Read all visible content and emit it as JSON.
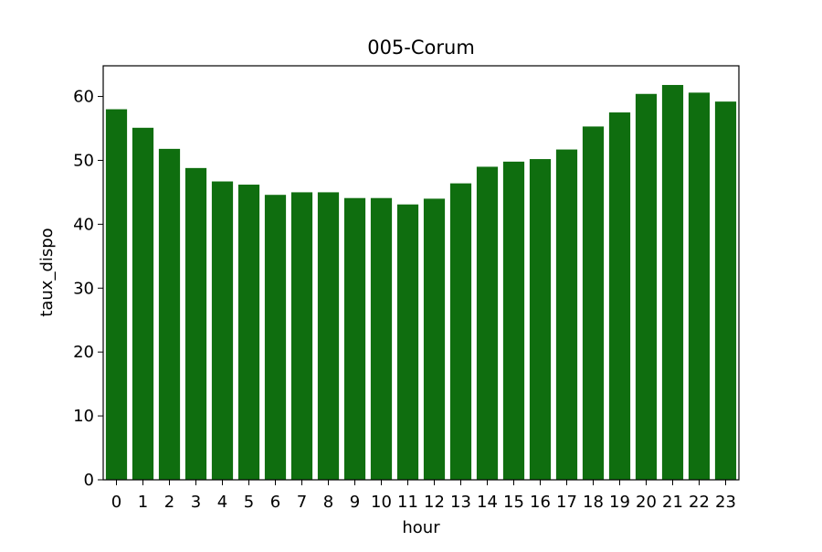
{
  "chart_data": {
    "type": "bar",
    "title": "005-Corum",
    "xlabel": "hour",
    "ylabel": "taux_dispo",
    "categories": [
      "0",
      "1",
      "2",
      "3",
      "4",
      "5",
      "6",
      "7",
      "8",
      "9",
      "10",
      "11",
      "12",
      "13",
      "14",
      "15",
      "16",
      "17",
      "18",
      "19",
      "20",
      "21",
      "22",
      "23"
    ],
    "values": [
      58.0,
      55.1,
      51.8,
      48.8,
      46.7,
      46.2,
      44.6,
      45.0,
      45.0,
      44.1,
      44.1,
      43.1,
      44.0,
      46.4,
      49.0,
      49.8,
      50.2,
      51.7,
      55.3,
      57.5,
      60.4,
      61.8,
      60.6,
      59.2
    ],
    "ylim": [
      0,
      64.8
    ],
    "yticks": [
      0,
      10,
      20,
      30,
      40,
      50,
      60
    ],
    "bar_color": "#0f6e0f",
    "grid": false,
    "legend": "none"
  }
}
